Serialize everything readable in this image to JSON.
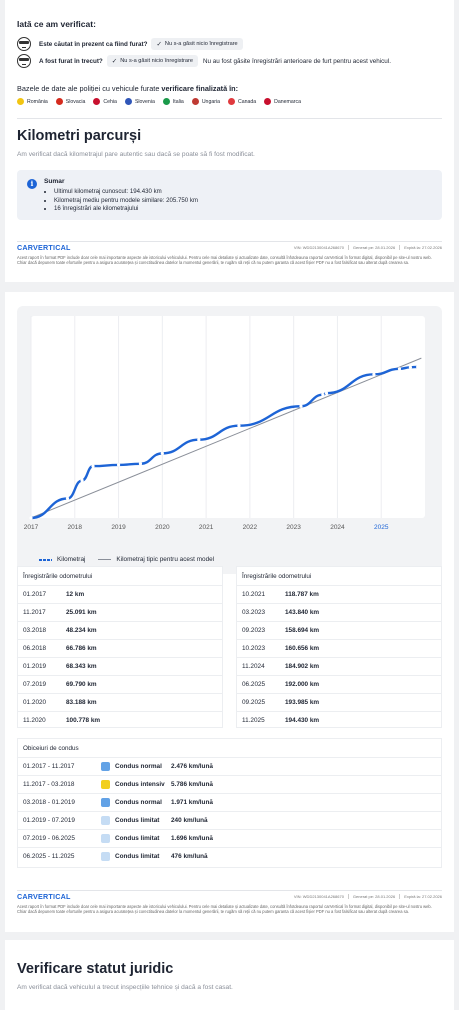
{
  "verified": {
    "title": "Iată ce am verificat:",
    "questions": [
      {
        "text": "Este căutat în prezent ca fiind furat?",
        "badge": "Nu s-a găsit nicio înregistrare",
        "extra": ""
      },
      {
        "text": "A fost furat în trecut?",
        "badge": "Nu s-a găsit nicio înregistrare",
        "extra": "Nu au fost găsite înregistrări anterioare de furt pentru acest vehicul."
      }
    ],
    "db_title_prefix": "Bazele de date ale poliției cu vehicule furate ",
    "db_title_bold": "verificare finalizată în:",
    "countries": [
      {
        "name": "România",
        "color": "#f2c512"
      },
      {
        "name": "Slovacia",
        "color": "#d52b1e"
      },
      {
        "name": "Cehia",
        "color": "#c8102e"
      },
      {
        "name": "Slovenia",
        "color": "#3056b8"
      },
      {
        "name": "Italia",
        "color": "#1a9a4a"
      },
      {
        "name": "Ungaria",
        "color": "#bf3a33"
      },
      {
        "name": "Canada",
        "color": "#e03a3e"
      },
      {
        "name": "Danemarca",
        "color": "#c8102e"
      }
    ]
  },
  "km": {
    "title": "Kilometri parcurși",
    "subtitle": "Am verificat dacă kilometrajul pare autentic sau dacă se poate să fi fost modificat.",
    "summary_title": "Sumar",
    "summary_items": [
      "Ultimul kilometraj cunoscut: 194.430 km",
      "Kilometraj mediu pentru modele similare: 205.750 km",
      "16 înregistrări ale kilometrajului"
    ]
  },
  "footer": {
    "logo": "CARVERTICAL",
    "vin": "VIN: WDD2130041A268670",
    "generated": "Generat pe: 28.01.2026",
    "expires": "Expiră la: 27.02.2026",
    "disclaimer": "Acest raport în format PDF include doar cele mai importante aspecte ale istoricului vehiculului. Pentru cele mai detaliate și actualizate date, consultă înfotdeauna raportul carVertical în format digital, disponibil pe site-ul nostru web. Chiar dacă depunem toate eforturile pentru a asigura acuratețea și corectitudinea datelor la momentul generării, te rugăm să reții că nu putem garanta că acest fișier PDF nu a fost falsificat sau alterat după crearea sa."
  },
  "chart_data": {
    "type": "line",
    "x_ticks": [
      "2017",
      "2018",
      "2019",
      "2020",
      "2021",
      "2022",
      "2023",
      "2024",
      "2025"
    ],
    "series": [
      {
        "name": "Kilometraj",
        "color": "#1d64d6",
        "points": [
          [
            "01.2017",
            12
          ],
          [
            "11.2017",
            25091
          ],
          [
            "03.2018",
            48234
          ],
          [
            "06.2018",
            66786
          ],
          [
            "01.2019",
            68343
          ],
          [
            "07.2019",
            69790
          ],
          [
            "01.2020",
            83188
          ],
          [
            "11.2020",
            100778
          ],
          [
            "10.2021",
            118787
          ],
          [
            "03.2023",
            143840
          ],
          [
            "09.2023",
            158694
          ],
          [
            "10.2023",
            160656
          ],
          [
            "11.2024",
            184902
          ],
          [
            "06.2025",
            192000
          ],
          [
            "09.2025",
            193985
          ],
          [
            "11.2025",
            194430
          ]
        ]
      },
      {
        "name": "Kilometraj tipic pentru acest model",
        "color": "#8a8f99",
        "points": [
          [
            "01.2017",
            0
          ],
          [
            "12.2025",
            205750
          ]
        ]
      }
    ],
    "ylim": [
      0,
      260000
    ]
  },
  "odo_left": {
    "title": "Înregistrările odometrului",
    "rows": [
      [
        "01.2017",
        "12 km"
      ],
      [
        "11.2017",
        "25.091 km"
      ],
      [
        "03.2018",
        "48.234 km"
      ],
      [
        "06.2018",
        "66.786 km"
      ],
      [
        "01.2019",
        "68.343 km"
      ],
      [
        "07.2019",
        "69.790 km"
      ],
      [
        "01.2020",
        "83.188 km"
      ],
      [
        "11.2020",
        "100.778 km"
      ]
    ]
  },
  "odo_right": {
    "title": "Înregistrările odometrului",
    "rows": [
      [
        "10.2021",
        "118.787 km"
      ],
      [
        "03.2023",
        "143.840 km"
      ],
      [
        "09.2023",
        "158.694 km"
      ],
      [
        "10.2023",
        "160.656 km"
      ],
      [
        "11.2024",
        "184.902 km"
      ],
      [
        "06.2025",
        "192.000 km"
      ],
      [
        "09.2025",
        "193.985 km"
      ],
      [
        "11.2025",
        "194.430 km"
      ]
    ]
  },
  "driving": {
    "title": "Obiceiuri de condus",
    "rows": [
      {
        "period": "01.2017 - 11.2017",
        "style": "Condus normal",
        "rate": "2.476 km/lună",
        "color": "#62a2e6"
      },
      {
        "period": "11.2017 - 03.2018",
        "style": "Condus intensiv",
        "rate": "5.786 km/lună",
        "color": "#f2cf1d"
      },
      {
        "period": "03.2018 - 01.2019",
        "style": "Condus normal",
        "rate": "1.971 km/lună",
        "color": "#62a2e6"
      },
      {
        "period": "01.2019 - 07.2019",
        "style": "Condus limitat",
        "rate": "240 km/lună",
        "color": "#c5dcf4"
      },
      {
        "period": "07.2019 - 06.2025",
        "style": "Condus limitat",
        "rate": "1.696 km/lună",
        "color": "#c5dcf4"
      },
      {
        "period": "06.2025 - 11.2025",
        "style": "Condus limitat",
        "rate": "476 km/lună",
        "color": "#c5dcf4"
      }
    ]
  },
  "legal": {
    "title": "Verificare statut juridic",
    "subtitle": "Am verificat dacă vehiculul a trecut inspecțiile tehnice și dacă a fost casat."
  }
}
